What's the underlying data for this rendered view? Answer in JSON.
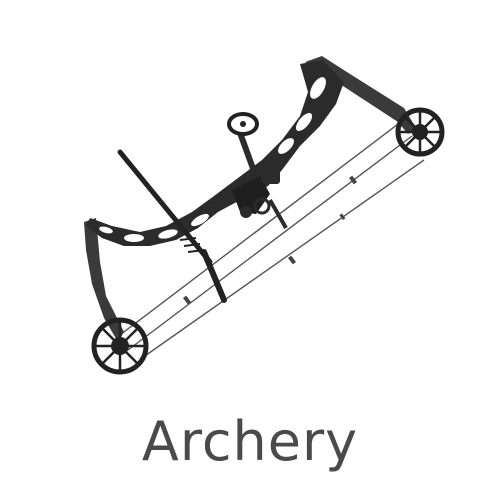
{
  "category": {
    "label": "Archery",
    "text_color": "#4a4a4a"
  },
  "illustration": {
    "subject": "compound-bow-icon",
    "colors": {
      "riser": "#2b2b2b",
      "limb": "#3a3a3a",
      "string": "#555555",
      "cam": "#222222"
    }
  }
}
